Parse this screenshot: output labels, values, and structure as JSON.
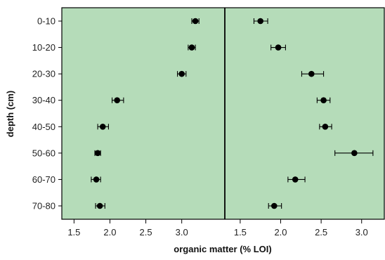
{
  "chart_data": {
    "type": "scatter",
    "xlabel": "organic matter (% LOI)",
    "ylabel": "depth (cm)",
    "categories": [
      "0-10",
      "10-20",
      "20-30",
      "30-40",
      "40-50",
      "50-60",
      "60-70",
      "70-80"
    ],
    "colors": {
      "panel_bg": "#b5dcb9",
      "marker": "#000000",
      "frame": "#000000"
    },
    "grid": false,
    "panels": [
      {
        "xlim": [
          1.33,
          3.6
        ],
        "xticks": [
          "1.5",
          "2.0",
          "2.5",
          "3.0"
        ],
        "xtick_values": [
          1.5,
          2.0,
          2.5,
          3.0
        ],
        "points": [
          {
            "category": "0-10",
            "mean": 3.19,
            "err_low": 3.14,
            "err_high": 3.24
          },
          {
            "category": "10-20",
            "mean": 3.14,
            "err_low": 3.09,
            "err_high": 3.19
          },
          {
            "category": "20-30",
            "mean": 3.0,
            "err_low": 2.94,
            "err_high": 3.06
          },
          {
            "category": "30-40",
            "mean": 2.1,
            "err_low": 2.03,
            "err_high": 2.19
          },
          {
            "category": "40-50",
            "mean": 1.9,
            "err_low": 1.83,
            "err_high": 1.98
          },
          {
            "category": "50-60",
            "mean": 1.83,
            "err_low": 1.79,
            "err_high": 1.87
          },
          {
            "category": "60-70",
            "mean": 1.81,
            "err_low": 1.74,
            "err_high": 1.87
          },
          {
            "category": "70-80",
            "mean": 1.86,
            "err_low": 1.8,
            "err_high": 1.93
          }
        ]
      },
      {
        "xlim": [
          1.31,
          3.28
        ],
        "xticks": [
          "1.5",
          "2.0",
          "2.5",
          "3.0"
        ],
        "xtick_values": [
          1.5,
          2.0,
          2.5,
          3.0
        ],
        "points": [
          {
            "category": "0-10",
            "mean": 1.75,
            "err_low": 1.67,
            "err_high": 1.84
          },
          {
            "category": "10-20",
            "mean": 1.97,
            "err_low": 1.88,
            "err_high": 2.06
          },
          {
            "category": "20-30",
            "mean": 2.38,
            "err_low": 2.26,
            "err_high": 2.53
          },
          {
            "category": "30-40",
            "mean": 2.53,
            "err_low": 2.45,
            "err_high": 2.61
          },
          {
            "category": "40-50",
            "mean": 2.55,
            "err_low": 2.48,
            "err_high": 2.63
          },
          {
            "category": "50-60",
            "mean": 2.91,
            "err_low": 2.67,
            "err_high": 3.14
          },
          {
            "category": "60-70",
            "mean": 2.18,
            "err_low": 2.09,
            "err_high": 2.3
          },
          {
            "category": "70-80",
            "mean": 1.92,
            "err_low": 1.85,
            "err_high": 2.01
          }
        ]
      }
    ]
  }
}
